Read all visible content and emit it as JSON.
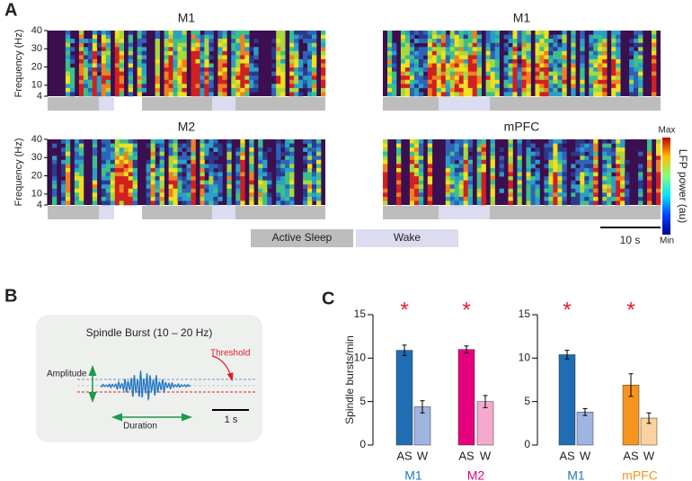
{
  "panel_a": {
    "label": "A",
    "titles": [
      "M1",
      "M1",
      "M2",
      "mPFC"
    ],
    "y_label": "Frequency (Hz)",
    "ylim": [
      4,
      40
    ],
    "yticks": [
      4,
      10,
      20,
      30,
      40
    ],
    "colorbar": {
      "title": "LFP power (au)",
      "max": "Max",
      "min": "Min"
    },
    "legend": [
      {
        "name": "Active Sleep",
        "color": "#bdbdbd"
      },
      {
        "name": "Wake",
        "color": "#dcdcf0"
      }
    ],
    "scale_bar": "10 s"
  },
  "panel_b": {
    "label": "B",
    "title": "Spindle Burst (10 – 20 Hz)",
    "amplitude": "Amplitude",
    "threshold": "Threshold",
    "duration": "Duration",
    "scale_bar": "1 s"
  },
  "panel_c_label": "C",
  "chart_data": [
    {
      "type": "bar",
      "y_label": "Spindle bursts/min",
      "ylim": [
        0,
        15
      ],
      "yticks": [
        0,
        5,
        10,
        15
      ],
      "groups": [
        {
          "name": "M1",
          "name_color": "#1f77c4",
          "categories": [
            "AS",
            "W"
          ],
          "values": [
            10.9,
            4.4
          ],
          "errors": [
            0.6,
            0.7
          ],
          "colors": [
            "#1f6db3",
            "#9fb4e0"
          ],
          "significance": "*"
        },
        {
          "name": "M2",
          "name_color": "#e6007e",
          "categories": [
            "AS",
            "W"
          ],
          "values": [
            11.0,
            5.0
          ],
          "errors": [
            0.4,
            0.7
          ],
          "colors": [
            "#e6007e",
            "#f4a9cf"
          ],
          "significance": "*"
        }
      ]
    },
    {
      "type": "bar",
      "ylim": [
        0,
        15
      ],
      "yticks": [
        0,
        5,
        10,
        15
      ],
      "groups": [
        {
          "name": "M1",
          "name_color": "#1f77c4",
          "categories": [
            "AS",
            "W"
          ],
          "values": [
            10.4,
            3.8
          ],
          "errors": [
            0.5,
            0.4
          ],
          "colors": [
            "#1f6db3",
            "#9fb4e0"
          ],
          "significance": "*"
        },
        {
          "name": "mPFC",
          "name_color": "#f7941d",
          "categories": [
            "AS",
            "W"
          ],
          "values": [
            6.9,
            3.1
          ],
          "errors": [
            1.3,
            0.6
          ],
          "colors": [
            "#f7941d",
            "#fcd29f"
          ],
          "significance": "*"
        }
      ]
    }
  ]
}
